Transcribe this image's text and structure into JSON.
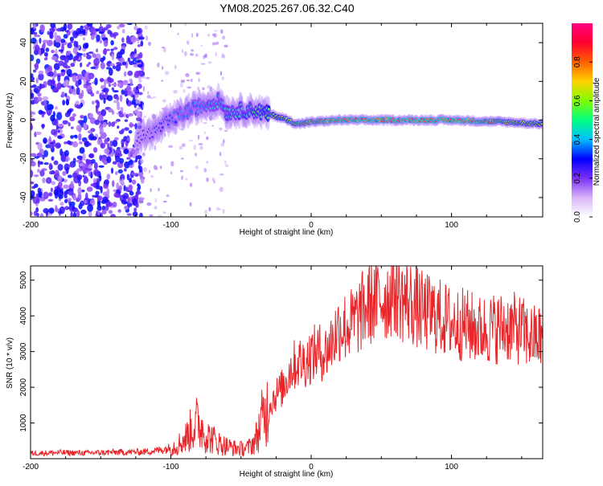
{
  "figure": {
    "title": "YM08.2025.267.06.32.C40"
  },
  "chart_data": [
    {
      "type": "heatmap",
      "name": "spectrogram",
      "xlabel": "Height of straight line (km)",
      "ylabel": "Frequency (Hz)",
      "xlim": [
        -200,
        165
      ],
      "ylim": [
        -50,
        50
      ],
      "xticks": [
        -200,
        -100,
        0,
        100
      ],
      "yticks": [
        -40,
        -20,
        0,
        20,
        40
      ],
      "colorbar": {
        "label": "Normalized spectral amplitude",
        "range": [
          0,
          1
        ],
        "ticks": [
          "0.0",
          "0.2",
          "0.4",
          "0.6",
          "0.8"
        ],
        "colors": [
          "#ffffff",
          "#d8b4f8",
          "#7b2ff7",
          "#0000ff",
          "#00bfff",
          "#00ff80",
          "#80ff00",
          "#ffd000",
          "#ff6000",
          "#ff0030",
          "#ff0080"
        ]
      },
      "ridge": {
        "x": [
          -125,
          -110,
          -100,
          -90,
          -80,
          -70,
          -65,
          -60,
          -50,
          -40,
          -30,
          -20,
          -10,
          0,
          20,
          60,
          100,
          140,
          165
        ],
        "freq": [
          -10,
          -5,
          0,
          4,
          7,
          9,
          10,
          4,
          5,
          5,
          3,
          1,
          -2,
          -1,
          0,
          0,
          0,
          -1,
          -2
        ],
        "amplitude": [
          0.25,
          0.3,
          0.35,
          0.4,
          0.4,
          0.45,
          0.45,
          0.5,
          0.5,
          0.55,
          0.6,
          0.7,
          0.75,
          0.8,
          0.9,
          0.9,
          0.95,
          0.75,
          0.7
        ]
      }
    },
    {
      "type": "line",
      "name": "snr",
      "xlabel": "Height of straight line (km)",
      "ylabel": "SNR (10 * v/v)",
      "xlim": [
        -200,
        165
      ],
      "ylim": [
        0,
        5400
      ],
      "xticks": [
        -200,
        -100,
        0,
        100
      ],
      "yticks": [
        1000,
        2000,
        3000,
        4000,
        5000
      ],
      "color": "#e8262a",
      "series": [
        {
          "name": "SNR",
          "x": [
            -200,
            -180,
            -160,
            -140,
            -120,
            -110,
            -100,
            -95,
            -90,
            -85,
            -82,
            -78,
            -75,
            -70,
            -65,
            -60,
            -55,
            -50,
            -45,
            -40,
            -35,
            -30,
            -25,
            -20,
            -15,
            -10,
            -5,
            0,
            5,
            10,
            15,
            20,
            25,
            30,
            40,
            45,
            50,
            55,
            58,
            62,
            65,
            70,
            80,
            90,
            100,
            110,
            120,
            130,
            140,
            150,
            155,
            160,
            165
          ],
          "values": [
            150,
            170,
            160,
            180,
            190,
            230,
            300,
            400,
            550,
            850,
            1000,
            900,
            650,
            550,
            420,
            350,
            300,
            280,
            300,
            500,
            1100,
            1500,
            1800,
            2000,
            2500,
            2700,
            2700,
            2900,
            3000,
            2950,
            3300,
            3700,
            3700,
            3800,
            4300,
            4400,
            4500,
            4500,
            4800,
            4650,
            4450,
            4400,
            4100,
            4000,
            3800,
            3750,
            3600,
            3650,
            3700,
            3600,
            3400,
            3400,
            3400
          ]
        }
      ]
    }
  ]
}
